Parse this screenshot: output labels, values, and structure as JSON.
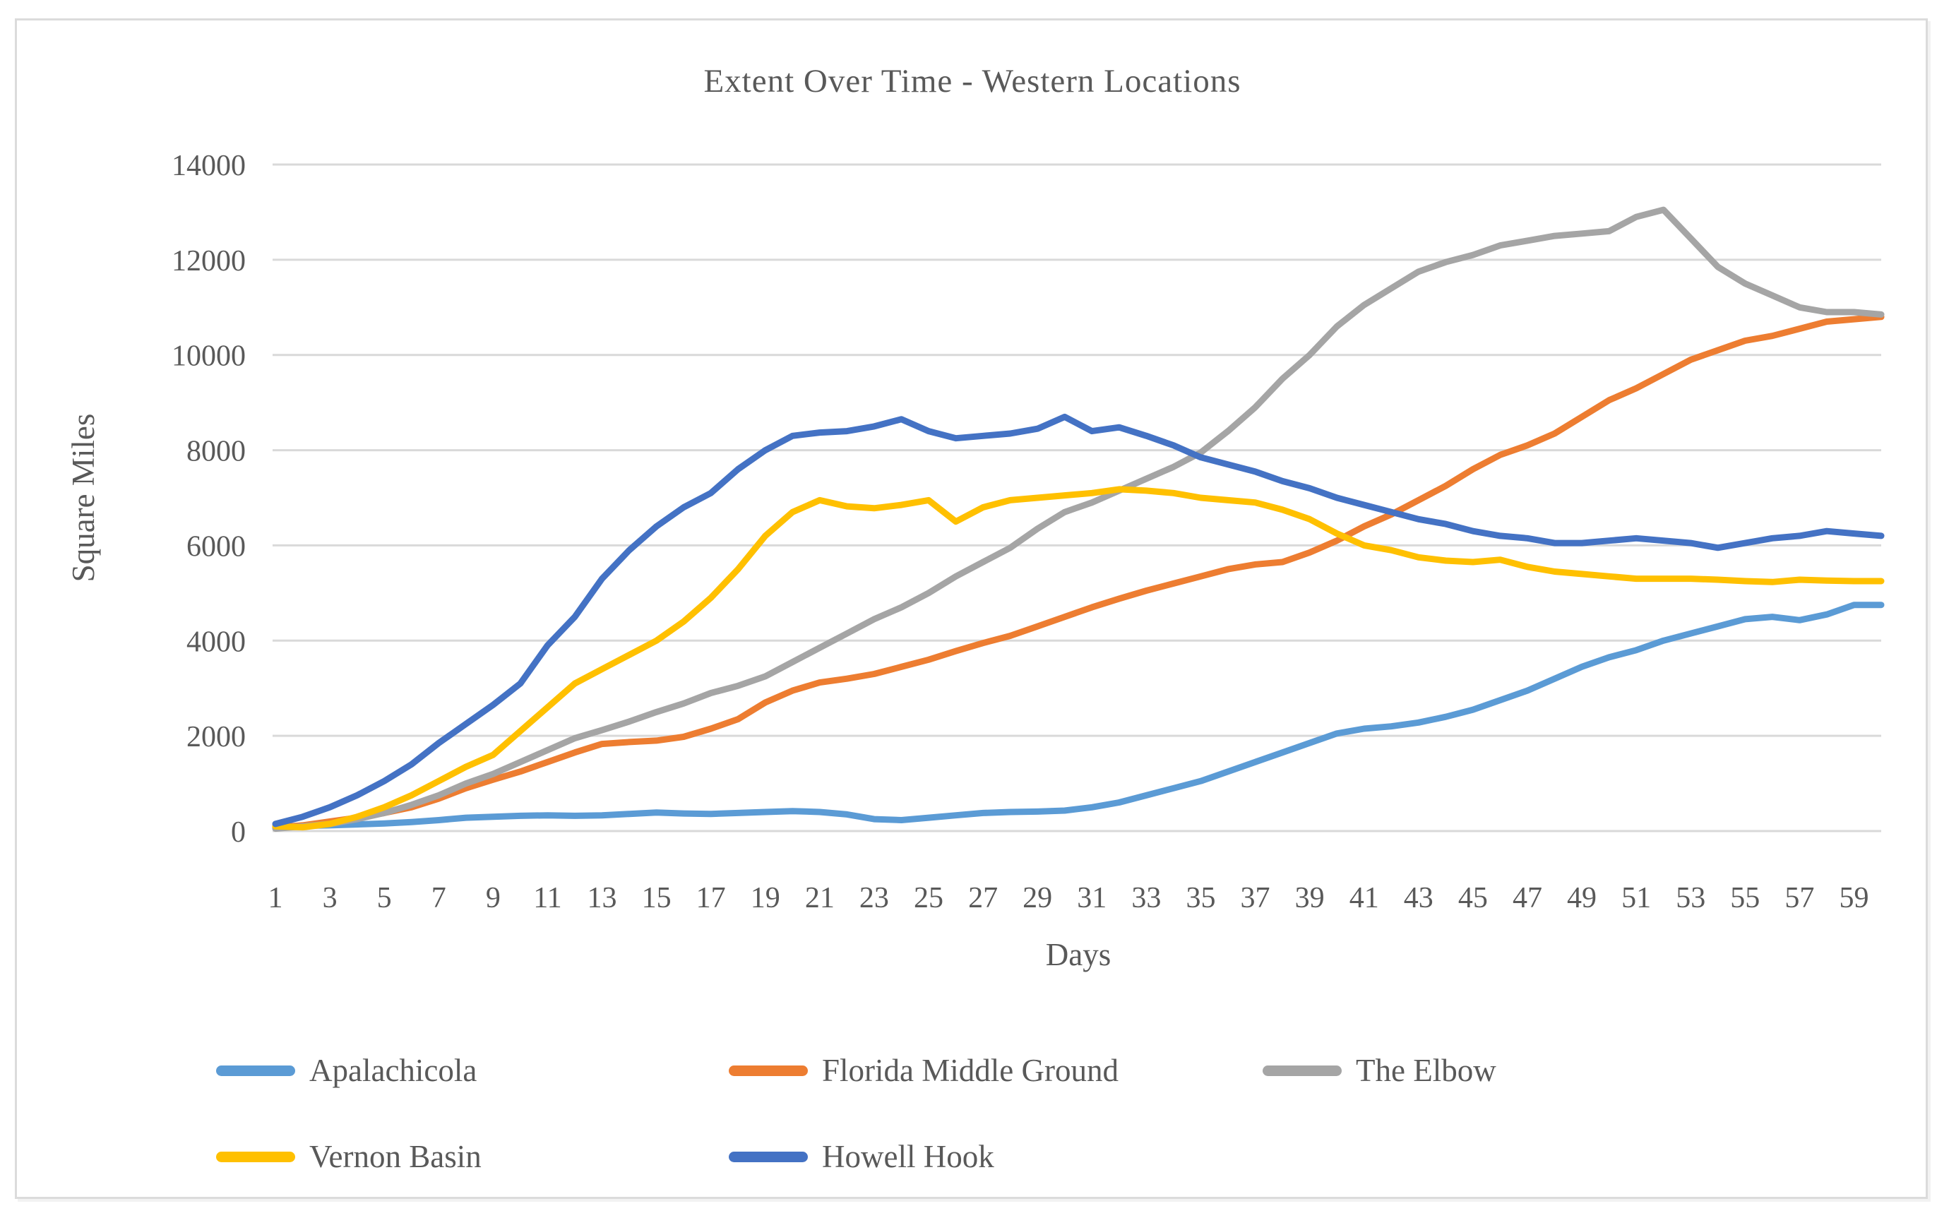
{
  "chart_data": {
    "type": "line",
    "title": "Extent Over Time - Western Locations",
    "xlabel": "Days",
    "ylabel": "Square Miles",
    "x_range": [
      1,
      60
    ],
    "x_tick_labels": [
      "1",
      "3",
      "5",
      "7",
      "9",
      "11",
      "13",
      "15",
      "17",
      "19",
      "21",
      "23",
      "25",
      "27",
      "29",
      "31",
      "33",
      "35",
      "37",
      "39",
      "41",
      "43",
      "45",
      "47",
      "49",
      "51",
      "53",
      "55",
      "57",
      "59"
    ],
    "ylim": [
      0,
      14000
    ],
    "y_tick_step": 2000,
    "y_tick_labels": [
      "0",
      "2000",
      "4000",
      "6000",
      "8000",
      "10000",
      "12000",
      "14000"
    ],
    "grid": true,
    "legend_position": "bottom-left, two rows",
    "series": [
      {
        "name": "Apalachicola",
        "color": "#5B9BD5",
        "values": [
          100,
          110,
          120,
          140,
          160,
          190,
          230,
          280,
          300,
          320,
          330,
          320,
          330,
          360,
          390,
          370,
          360,
          380,
          400,
          420,
          400,
          350,
          250,
          230,
          280,
          330,
          380,
          400,
          410,
          430,
          500,
          600,
          750,
          900,
          1050,
          1250,
          1450,
          1650,
          1850,
          2050,
          2150,
          2200,
          2280,
          2400,
          2550,
          2750,
          2950,
          3200,
          3450,
          3650,
          3800,
          4000,
          4150,
          4300,
          4450,
          4500,
          4430,
          4550,
          4750,
          4750
        ]
      },
      {
        "name": "Florida Middle Ground",
        "color": "#ED7D31",
        "values": [
          70,
          120,
          200,
          280,
          380,
          500,
          680,
          900,
          1080,
          1250,
          1450,
          1650,
          1830,
          1870,
          1900,
          1980,
          2150,
          2350,
          2700,
          2950,
          3120,
          3200,
          3300,
          3450,
          3600,
          3780,
          3950,
          4100,
          4300,
          4500,
          4700,
          4880,
          5050,
          5200,
          5350,
          5500,
          5600,
          5650,
          5850,
          6100,
          6400,
          6650,
          6950,
          7250,
          7600,
          7900,
          8100,
          8350,
          8700,
          9050,
          9300,
          9600,
          9900,
          10100,
          10300,
          10400,
          10550,
          10700,
          10750,
          10800
        ]
      },
      {
        "name": "The Elbow",
        "color": "#A5A5A5",
        "values": [
          50,
          100,
          150,
          250,
          380,
          550,
          750,
          1000,
          1200,
          1450,
          1700,
          1950,
          2120,
          2300,
          2500,
          2680,
          2900,
          3050,
          3250,
          3550,
          3850,
          4150,
          4450,
          4700,
          5000,
          5350,
          5650,
          5950,
          6350,
          6700,
          6900,
          7150,
          7400,
          7650,
          7950,
          8400,
          8900,
          9500,
          10000,
          10600,
          11050,
          11400,
          11750,
          11950,
          12100,
          12300,
          12400,
          12500,
          12550,
          12600,
          12900,
          13050,
          12450,
          11850,
          11500,
          11250,
          11000,
          10900,
          10900,
          10850
        ]
      },
      {
        "name": "Vernon Basin",
        "color": "#FFC000",
        "values": [
          100,
          80,
          150,
          300,
          500,
          750,
          1050,
          1350,
          1600,
          2100,
          2600,
          3100,
          3400,
          3700,
          4000,
          4400,
          4900,
          5500,
          6200,
          6700,
          6950,
          6820,
          6780,
          6850,
          6950,
          6500,
          6800,
          6950,
          7000,
          7050,
          7100,
          7180,
          7150,
          7100,
          7000,
          6950,
          6900,
          6750,
          6550,
          6250,
          6000,
          5900,
          5750,
          5680,
          5650,
          5700,
          5550,
          5450,
          5400,
          5350,
          5300,
          5300,
          5300,
          5280,
          5250,
          5230,
          5280,
          5260,
          5250,
          5250
        ]
      },
      {
        "name": "Howell Hook",
        "color": "#4472C4",
        "values": [
          150,
          300,
          500,
          750,
          1050,
          1400,
          1850,
          2250,
          2650,
          3100,
          3900,
          4500,
          5300,
          5900,
          6400,
          6800,
          7100,
          7600,
          8000,
          8300,
          8370,
          8400,
          8500,
          8650,
          8400,
          8250,
          8300,
          8350,
          8450,
          8700,
          8400,
          8480,
          8300,
          8100,
          7850,
          7700,
          7550,
          7350,
          7200,
          7000,
          6850,
          6700,
          6550,
          6450,
          6300,
          6200,
          6150,
          6050,
          6050,
          6100,
          6150,
          6100,
          6050,
          5950,
          6050,
          6150,
          6200,
          6300,
          6250,
          6200
        ]
      }
    ]
  },
  "colors": {
    "text": "#595959",
    "gridline": "#D9D9D9",
    "frame_border": "#DBDBDB",
    "background": "#FFFFFF"
  },
  "legend": {
    "row1": [
      "Apalachicola",
      "Florida Middle Ground",
      "The Elbow"
    ],
    "row2": [
      "Vernon Basin",
      "Howell Hook"
    ]
  }
}
